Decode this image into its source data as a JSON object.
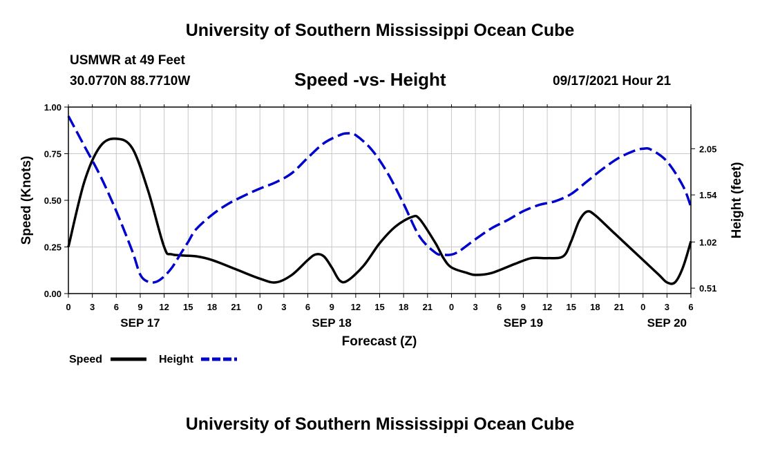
{
  "header": {
    "title_top": "University of Southern Mississippi Ocean Cube",
    "station": "USMWR at 49 Feet",
    "coords": "30.0770N  88.7710W",
    "chart_title": "Speed -vs- Height",
    "datetime": "09/17/2021 Hour 21"
  },
  "footer": {
    "title_bottom": "University of Southern Mississippi Ocean Cube"
  },
  "colors": {
    "speed": "#000000",
    "height": "#0000cc",
    "grid": "#c8c8c8"
  },
  "chart_data": {
    "type": "line",
    "title": "Speed -vs- Height",
    "xlabel": "Forecast (Z)",
    "ylabel": "Speed (Knots)",
    "ylabel_right": "Height (feet)",
    "x_range": [
      0,
      78
    ],
    "ylim": [
      0,
      1.0
    ],
    "ylim_right": [
      0.45,
      2.51
    ],
    "grid": true,
    "legend_position": "bottom-left",
    "x_ticks": [
      0,
      3,
      6,
      9,
      12,
      15,
      18,
      21,
      24,
      27,
      30,
      33,
      36,
      39,
      42,
      45,
      48,
      51,
      54,
      57,
      60,
      63,
      66,
      69,
      72,
      75,
      78
    ],
    "x_tick_labels": [
      "0",
      "3",
      "6",
      "9",
      "12",
      "15",
      "18",
      "21",
      "0",
      "3",
      "6",
      "9",
      "12",
      "15",
      "18",
      "21",
      "0",
      "3",
      "6",
      "9",
      "12",
      "15",
      "18",
      "21",
      "0",
      "3",
      "6"
    ],
    "y_ticks": [
      0,
      0.25,
      0.5,
      0.75,
      1.0
    ],
    "y_tick_labels": [
      "0.00",
      "0.25",
      "0.50",
      "0.75",
      "1.00"
    ],
    "y_right_ticks": [
      0.51,
      1.02,
      1.54,
      2.05
    ],
    "y_right_tick_labels": [
      "0.51",
      "1.02",
      "1.54",
      "2.05"
    ],
    "date_labels": [
      {
        "x": 9,
        "label": "SEP 17"
      },
      {
        "x": 33,
        "label": "SEP 18"
      },
      {
        "x": 57,
        "label": "SEP 19"
      },
      {
        "x": 75,
        "label": "SEP 20"
      }
    ],
    "series": [
      {
        "name": "Speed",
        "axis": "left",
        "style": "solid",
        "points": [
          [
            0,
            0.25
          ],
          [
            2,
            0.6
          ],
          [
            4,
            0.79
          ],
          [
            6,
            0.83
          ],
          [
            8,
            0.78
          ],
          [
            10,
            0.55
          ],
          [
            12,
            0.25
          ],
          [
            13,
            0.21
          ],
          [
            16,
            0.2
          ],
          [
            18,
            0.18
          ],
          [
            21,
            0.13
          ],
          [
            24,
            0.08
          ],
          [
            26,
            0.06
          ],
          [
            28,
            0.1
          ],
          [
            30,
            0.18
          ],
          [
            31,
            0.21
          ],
          [
            32,
            0.2
          ],
          [
            33,
            0.14
          ],
          [
            34,
            0.07
          ],
          [
            35,
            0.07
          ],
          [
            37,
            0.15
          ],
          [
            39,
            0.27
          ],
          [
            41,
            0.36
          ],
          [
            43,
            0.41
          ],
          [
            44,
            0.4
          ],
          [
            46,
            0.27
          ],
          [
            47,
            0.19
          ],
          [
            48,
            0.14
          ],
          [
            50,
            0.11
          ],
          [
            51,
            0.1
          ],
          [
            53,
            0.11
          ],
          [
            56,
            0.16
          ],
          [
            58,
            0.19
          ],
          [
            60,
            0.19
          ],
          [
            62,
            0.2
          ],
          [
            63,
            0.28
          ],
          [
            64,
            0.39
          ],
          [
            65,
            0.44
          ],
          [
            66,
            0.42
          ],
          [
            68,
            0.34
          ],
          [
            70,
            0.26
          ],
          [
            72,
            0.18
          ],
          [
            74,
            0.1
          ],
          [
            75,
            0.06
          ],
          [
            76,
            0.06
          ],
          [
            77,
            0.14
          ],
          [
            78,
            0.28
          ]
        ]
      },
      {
        "name": "Height",
        "axis": "right",
        "style": "dashed",
        "points": [
          [
            0,
            2.41
          ],
          [
            2,
            2.08
          ],
          [
            4,
            1.75
          ],
          [
            6,
            1.36
          ],
          [
            8,
            0.92
          ],
          [
            9,
            0.66
          ],
          [
            10,
            0.58
          ],
          [
            11,
            0.58
          ],
          [
            12,
            0.64
          ],
          [
            13,
            0.74
          ],
          [
            14,
            0.88
          ],
          [
            15,
            1.02
          ],
          [
            16,
            1.16
          ],
          [
            18,
            1.32
          ],
          [
            20,
            1.44
          ],
          [
            22,
            1.53
          ],
          [
            24,
            1.61
          ],
          [
            26,
            1.68
          ],
          [
            28,
            1.78
          ],
          [
            30,
            1.95
          ],
          [
            32,
            2.11
          ],
          [
            34,
            2.2
          ],
          [
            35,
            2.22
          ],
          [
            36,
            2.2
          ],
          [
            38,
            2.04
          ],
          [
            40,
            1.78
          ],
          [
            42,
            1.44
          ],
          [
            44,
            1.08
          ],
          [
            46,
            0.9
          ],
          [
            47,
            0.88
          ],
          [
            48,
            0.88
          ],
          [
            49,
            0.92
          ],
          [
            51,
            1.05
          ],
          [
            53,
            1.17
          ],
          [
            55,
            1.26
          ],
          [
            57,
            1.36
          ],
          [
            59,
            1.43
          ],
          [
            61,
            1.47
          ],
          [
            63,
            1.55
          ],
          [
            65,
            1.69
          ],
          [
            67,
            1.83
          ],
          [
            69,
            1.95
          ],
          [
            71,
            2.03
          ],
          [
            72,
            2.05
          ],
          [
            73,
            2.04
          ],
          [
            75,
            1.91
          ],
          [
            77,
            1.64
          ],
          [
            78,
            1.41
          ]
        ]
      }
    ]
  }
}
